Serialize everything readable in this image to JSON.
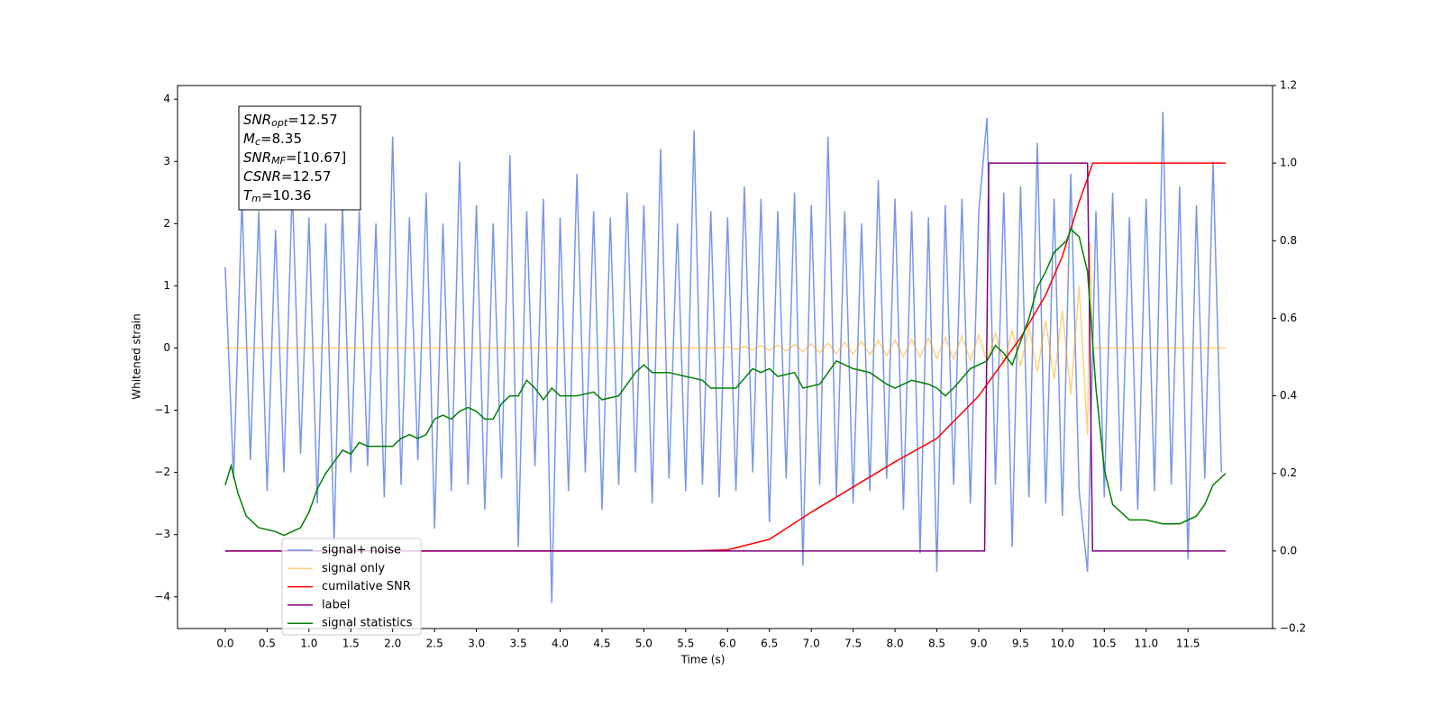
{
  "chart_data": {
    "type": "line",
    "xlabel": "Time (s)",
    "ylabel": "Whitened strain",
    "xlim": [
      -0.57,
      12.51
    ],
    "ylim": [
      -4.51,
      4.22
    ],
    "y2lim": [
      -0.2,
      1.2
    ],
    "xticks": [
      {
        "value": 0,
        "label": "0.0"
      },
      0.5,
      {
        "value": 1,
        "label": "1.0"
      },
      1.5,
      {
        "value": 2,
        "label": "2.0"
      },
      2.5,
      {
        "value": 3,
        "label": "3.0"
      },
      3.5,
      {
        "value": 4,
        "label": "4.0"
      },
      4.5,
      {
        "value": 5,
        "label": "5.0"
      },
      5.5,
      {
        "value": 6,
        "label": "6.0"
      },
      6.5,
      {
        "value": 7,
        "label": "7.0"
      },
      7.5,
      {
        "value": 8,
        "label": "8.0"
      },
      8.5,
      {
        "value": 9,
        "label": "9.0"
      },
      9.5,
      {
        "value": 10,
        "label": "10.0"
      },
      10.5,
      {
        "value": 11,
        "label": "11.0"
      },
      11.5
    ],
    "yticks": [
      {
        "value": -4,
        "label": "−4"
      },
      {
        "value": -3,
        "label": "−3"
      },
      {
        "value": -2,
        "label": "−2"
      },
      {
        "value": -1,
        "label": "−1"
      },
      0,
      1,
      2,
      3,
      4
    ],
    "y2ticks": [
      {
        "value": -0.2,
        "label": "−0.2"
      },
      {
        "value": 0,
        "label": "0.0"
      },
      0.2,
      0.4,
      0.6,
      0.8,
      {
        "value": 1,
        "label": "1.0"
      },
      1.2
    ],
    "legend": "lower left",
    "annotations": [
      {
        "symbol": "SNR",
        "subscript": "opt",
        "text": "=12.57"
      },
      {
        "symbol": "M",
        "subscript": "c",
        "text": "=8.35"
      },
      {
        "symbol": "SNR",
        "subscript": "MF",
        "text": "=[10.67]"
      },
      {
        "symbol": "CSNR",
        "text": "=12.57"
      },
      {
        "symbol": "T",
        "subscript": "m",
        "text": "=10.36"
      }
    ],
    "series": [
      {
        "name": "signal+ noise",
        "color": "#4169e1",
        "alpha": 0.7,
        "axis": "y",
        "x": [
          0,
          0.1,
          0.2,
          0.3,
          0.4,
          0.5,
          0.6,
          0.7,
          0.8,
          0.9,
          1,
          1.1,
          1.2,
          1.3,
          1.4,
          1.5,
          1.6,
          1.7,
          1.8,
          1.9,
          2,
          2.1,
          2.2,
          2.3,
          2.4,
          2.5,
          2.6,
          2.7,
          2.8,
          2.9,
          3,
          3.1,
          3.2,
          3.3,
          3.4,
          3.5,
          3.6,
          3.7,
          3.8,
          3.9,
          4,
          4.1,
          4.2,
          4.3,
          4.4,
          4.5,
          4.6,
          4.7,
          4.8,
          4.9,
          5,
          5.1,
          5.2,
          5.3,
          5.4,
          5.5,
          5.6,
          5.7,
          5.8,
          5.9,
          6,
          6.1,
          6.2,
          6.3,
          6.4,
          6.5,
          6.6,
          6.7,
          6.8,
          6.9,
          7,
          7.1,
          7.2,
          7.3,
          7.4,
          7.5,
          7.6,
          7.7,
          7.8,
          7.9,
          8,
          8.1,
          8.2,
          8.3,
          8.4,
          8.5,
          8.6,
          8.7,
          8.8,
          8.9,
          9,
          9.1,
          9.2,
          9.3,
          9.4,
          9.5,
          9.6,
          9.7,
          9.8,
          9.9,
          10,
          10.1,
          10.2,
          10.3,
          10.4,
          10.5,
          10.6,
          10.7,
          10.8,
          10.9,
          11,
          11.1,
          11.2,
          11.3,
          11.4,
          11.5,
          11.6,
          11.7,
          11.8,
          11.9
        ],
        "values": [
          1.3,
          -2.1,
          2.4,
          -1.8,
          2.2,
          -2.3,
          1.9,
          -2.0,
          2.6,
          -1.7,
          2.1,
          -2.5,
          2.0,
          -3.1,
          2.3,
          -2.0,
          2.2,
          -1.9,
          2.0,
          -2.4,
          3.4,
          -2.2,
          2.1,
          -1.8,
          2.5,
          -2.9,
          2.0,
          -2.3,
          3.0,
          -2.2,
          2.3,
          -2.6,
          2.0,
          -2.1,
          3.1,
          -3.2,
          2.2,
          -1.9,
          2.4,
          -4.1,
          2.1,
          -2.3,
          2.8,
          -2.0,
          2.2,
          -2.6,
          2.1,
          -2.2,
          2.5,
          -2.0,
          2.3,
          -2.5,
          3.2,
          -2.1,
          2.0,
          -2.3,
          3.5,
          -2.2,
          2.2,
          -2.4,
          2.1,
          -2.3,
          2.6,
          -2.0,
          2.4,
          -2.8,
          2.2,
          -2.1,
          2.5,
          -3.5,
          2.3,
          -2.2,
          3.4,
          -2.4,
          2.2,
          -2.5,
          2.0,
          -2.3,
          2.7,
          -2.1,
          2.4,
          -2.6,
          2.2,
          -3.3,
          2.1,
          -3.6,
          2.3,
          -2.2,
          2.4,
          -2.5,
          2.2,
          3.7,
          -2.2,
          2.5,
          -3.2,
          2.6,
          -2.4,
          3.3,
          -2.5,
          2.4,
          -2.7,
          2.8,
          -2.3,
          -3.6,
          2.2,
          -2.4,
          2.5,
          -2.3,
          2.1,
          -2.6,
          2.4,
          -2.3,
          3.8,
          -2.2,
          2.6,
          -3.4,
          2.3,
          -2.1,
          3.0,
          -2.0
        ]
      },
      {
        "name": "signal only",
        "color": "#ffa500",
        "alpha": 0.5,
        "axis": "y",
        "x": [
          0,
          5.9,
          6,
          6.1,
          6.2,
          6.3,
          6.4,
          6.5,
          6.6,
          6.7,
          6.8,
          6.9,
          7,
          7.1,
          7.2,
          7.3,
          7.4,
          7.5,
          7.6,
          7.7,
          7.8,
          7.9,
          8,
          8.1,
          8.2,
          8.3,
          8.4,
          8.5,
          8.6,
          8.7,
          8.8,
          8.9,
          9,
          9.1,
          9.2,
          9.3,
          9.4,
          9.5,
          9.6,
          9.7,
          9.8,
          9.9,
          10,
          10.1,
          10.2,
          10.3,
          10.33,
          10.36,
          11.95
        ],
        "values": [
          0,
          0,
          0.02,
          -0.02,
          0.03,
          -0.03,
          0.04,
          -0.04,
          0.05,
          -0.05,
          0.06,
          -0.06,
          0.07,
          -0.08,
          0.08,
          -0.09,
          0.09,
          -0.1,
          0.11,
          -0.11,
          0.12,
          -0.12,
          0.13,
          -0.14,
          0.14,
          -0.15,
          0.16,
          -0.17,
          0.17,
          -0.18,
          0.19,
          -0.2,
          0.21,
          -0.22,
          0.24,
          -0.26,
          0.28,
          -0.3,
          0.34,
          -0.38,
          0.44,
          -0.5,
          0.6,
          -0.75,
          1.0,
          -1.4,
          1.7,
          0,
          0
        ]
      },
      {
        "name": "cumilative SNR",
        "color": "#ff0000",
        "axis": "y2",
        "x": [
          0,
          5.5,
          6,
          6.5,
          7,
          7.5,
          8,
          8.5,
          9,
          9.5,
          9.8,
          10,
          10.2,
          10.3,
          10.36,
          11.95
        ],
        "values": [
          0,
          0,
          0.003,
          0.03,
          0.1,
          0.165,
          0.23,
          0.29,
          0.4,
          0.55,
          0.66,
          0.76,
          0.9,
          0.96,
          1,
          1
        ]
      },
      {
        "name": "label",
        "color": "#800080",
        "axis": "y2",
        "x": [
          0,
          9.07,
          9.12,
          10.3,
          10.36,
          11.95
        ],
        "values": [
          0,
          0,
          1,
          1,
          0,
          0
        ]
      },
      {
        "name": "signal statistics",
        "color": "#008000",
        "axis": "y2",
        "x": [
          0,
          0.07,
          0.15,
          0.25,
          0.4,
          0.6,
          0.7,
          0.9,
          1,
          1.1,
          1.2,
          1.3,
          1.4,
          1.5,
          1.6,
          1.7,
          1.8,
          2,
          2.1,
          2.2,
          2.3,
          2.4,
          2.5,
          2.6,
          2.7,
          2.8,
          2.9,
          3,
          3.1,
          3.2,
          3.3,
          3.4,
          3.5,
          3.6,
          3.7,
          3.8,
          3.9,
          4,
          4.2,
          4.4,
          4.5,
          4.7,
          4.8,
          4.9,
          5,
          5.1,
          5.3,
          5.5,
          5.7,
          5.8,
          6,
          6.1,
          6.3,
          6.4,
          6.5,
          6.6,
          6.8,
          6.9,
          7.1,
          7.2,
          7.3,
          7.5,
          7.7,
          7.9,
          8,
          8.2,
          8.4,
          8.5,
          8.6,
          8.7,
          8.9,
          9.1,
          9.2,
          9.3,
          9.4,
          9.5,
          9.6,
          9.7,
          9.8,
          9.9,
          10,
          10.05,
          10.1,
          10.2,
          10.3,
          10.4,
          10.5,
          10.6,
          10.8,
          10.9,
          11,
          11.2,
          11.4,
          11.6,
          11.7,
          11.8,
          11.9,
          11.95
        ],
        "values": [
          0.17,
          0.22,
          0.15,
          0.09,
          0.06,
          0.05,
          0.04,
          0.06,
          0.1,
          0.16,
          0.2,
          0.23,
          0.26,
          0.25,
          0.28,
          0.27,
          0.27,
          0.27,
          0.29,
          0.3,
          0.29,
          0.3,
          0.34,
          0.35,
          0.34,
          0.36,
          0.37,
          0.36,
          0.34,
          0.34,
          0.38,
          0.4,
          0.4,
          0.44,
          0.42,
          0.39,
          0.42,
          0.4,
          0.4,
          0.41,
          0.39,
          0.4,
          0.43,
          0.46,
          0.48,
          0.46,
          0.46,
          0.45,
          0.44,
          0.42,
          0.42,
          0.42,
          0.47,
          0.46,
          0.47,
          0.45,
          0.46,
          0.42,
          0.43,
          0.46,
          0.49,
          0.47,
          0.46,
          0.43,
          0.42,
          0.44,
          0.43,
          0.42,
          0.4,
          0.42,
          0.47,
          0.49,
          0.53,
          0.51,
          0.48,
          0.54,
          0.6,
          0.68,
          0.72,
          0.77,
          0.79,
          0.8,
          0.83,
          0.81,
          0.72,
          0.42,
          0.21,
          0.12,
          0.08,
          0.08,
          0.08,
          0.07,
          0.07,
          0.09,
          0.12,
          0.17,
          0.19,
          0.2
        ]
      }
    ]
  }
}
